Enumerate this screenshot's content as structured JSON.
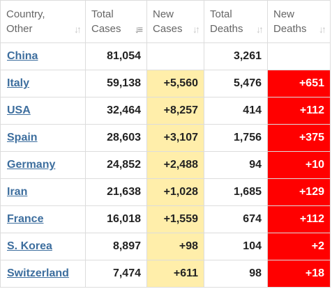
{
  "columns": [
    {
      "line1": "Country,",
      "line2": "Other",
      "sort_icon": "sort-arrows-icon",
      "active": false
    },
    {
      "line1": "Total",
      "line2": "Cases",
      "sort_icon": "sort-descending-icon",
      "active": true
    },
    {
      "line1": "New",
      "line2": "Cases",
      "sort_icon": "sort-arrows-icon",
      "active": false
    },
    {
      "line1": "Total",
      "line2": "Deaths",
      "sort_icon": "sort-arrows-icon",
      "active": false
    },
    {
      "line1": "New",
      "line2": "Deaths",
      "sort_icon": "sort-arrows-icon",
      "active": false
    }
  ],
  "colors": {
    "link": "#3d6e9e",
    "new_cases_highlight": "#ffeeaa",
    "new_deaths_highlight": "#ff0000"
  },
  "rows": [
    {
      "country": "China",
      "total_cases": "81,054",
      "new_cases": "",
      "total_deaths": "3,261",
      "new_deaths": ""
    },
    {
      "country": "Italy",
      "total_cases": "59,138",
      "new_cases": "+5,560",
      "total_deaths": "5,476",
      "new_deaths": "+651"
    },
    {
      "country": "USA",
      "total_cases": "32,464",
      "new_cases": "+8,257",
      "total_deaths": "414",
      "new_deaths": "+112"
    },
    {
      "country": "Spain",
      "total_cases": "28,603",
      "new_cases": "+3,107",
      "total_deaths": "1,756",
      "new_deaths": "+375"
    },
    {
      "country": "Germany",
      "total_cases": "24,852",
      "new_cases": "+2,488",
      "total_deaths": "94",
      "new_deaths": "+10"
    },
    {
      "country": "Iran",
      "total_cases": "21,638",
      "new_cases": "+1,028",
      "total_deaths": "1,685",
      "new_deaths": "+129"
    },
    {
      "country": "France",
      "total_cases": "16,018",
      "new_cases": "+1,559",
      "total_deaths": "674",
      "new_deaths": "+112"
    },
    {
      "country": "S. Korea",
      "total_cases": "8,897",
      "new_cases": "+98",
      "total_deaths": "104",
      "new_deaths": "+2"
    },
    {
      "country": "Switzerland",
      "total_cases": "7,474",
      "new_cases": "+611",
      "total_deaths": "98",
      "new_deaths": "+18"
    }
  ]
}
